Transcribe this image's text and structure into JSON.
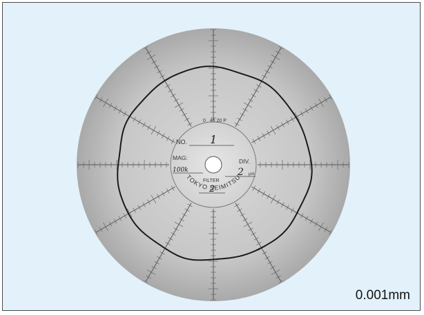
{
  "scale_label": "0.001mm",
  "chart": {
    "top_mark": "0 . 40 20 P",
    "no_label": "NO.",
    "no_value": "1",
    "mag_label": "MAG:",
    "mag_value": "100k",
    "div_label": "DIV.",
    "div_value": "2",
    "div_unit": "µm",
    "filter_label": "FILTER",
    "filter_value": "2",
    "brand": "TOKYO SEIMITSU"
  },
  "colors": {
    "background": "#e3f1fa",
    "disc": "#c8c8c8",
    "ink": "#222222"
  }
}
